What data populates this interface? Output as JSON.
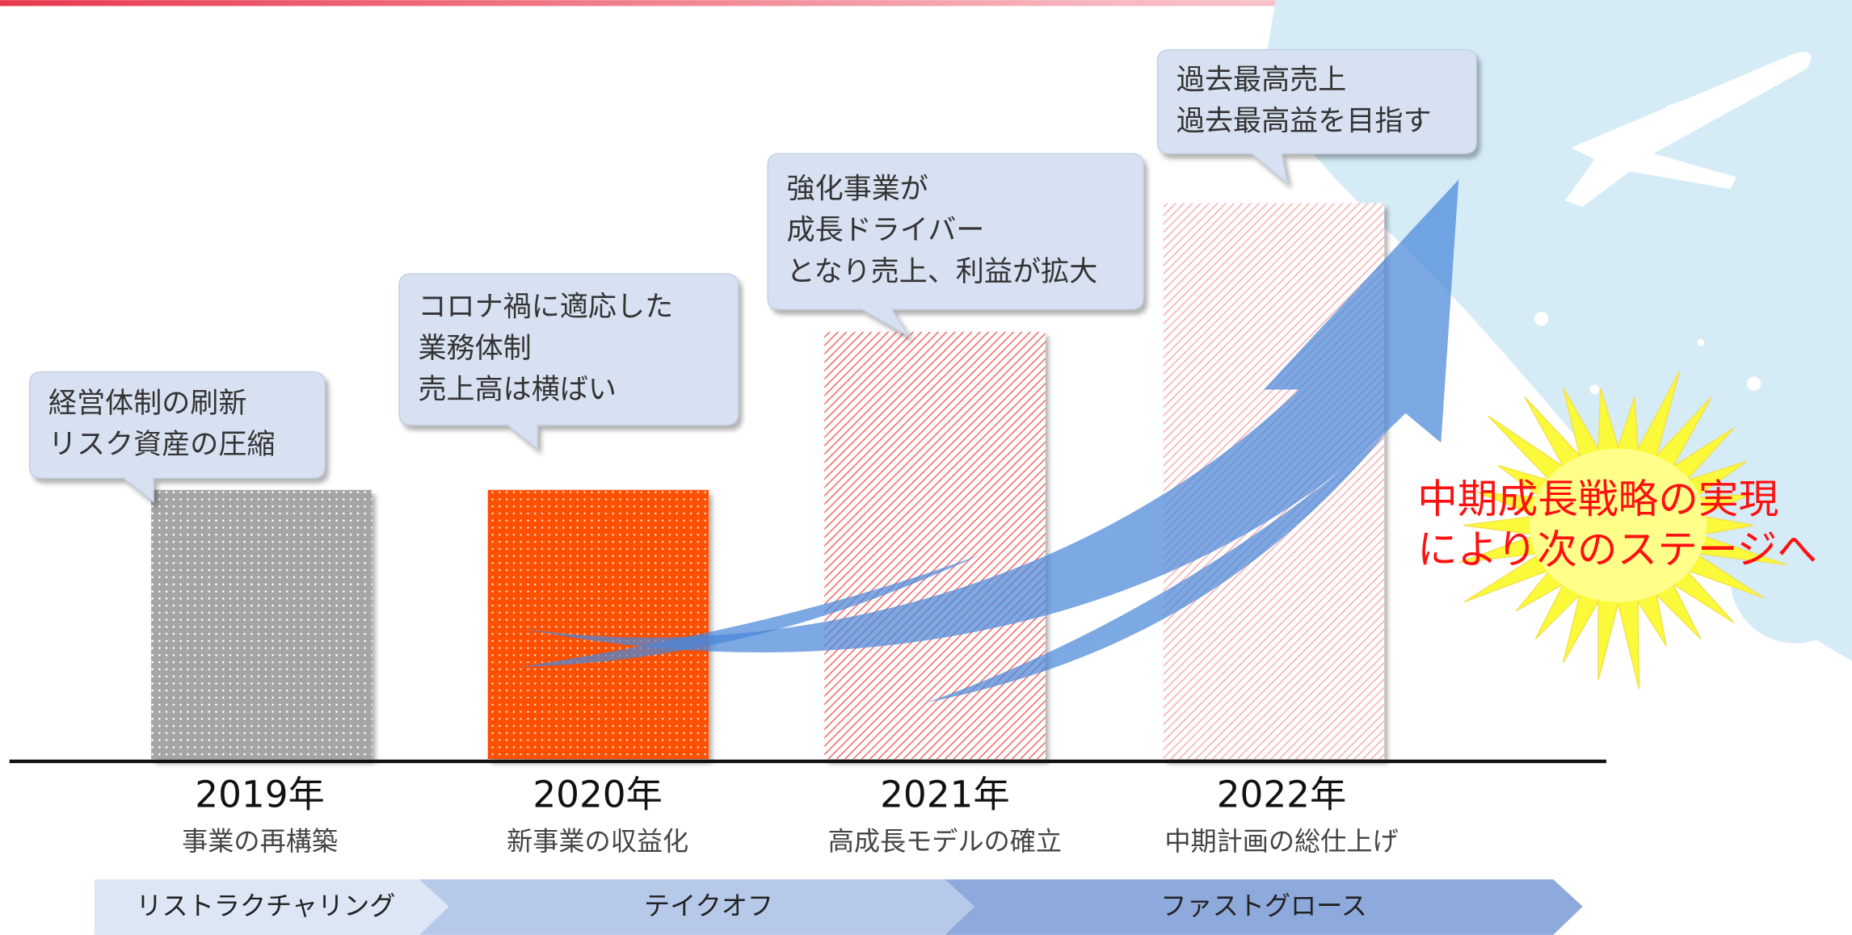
{
  "stages": [
    {
      "year": "2019年",
      "name": "事業の再構築",
      "bubble": [
        "経営体制の刷新",
        "リスク資産の圧縮"
      ]
    },
    {
      "year": "2020年",
      "name": "新事業の収益化",
      "bubble": [
        "コロナ禍に適応した",
        "業務体制",
        "売上高は横ばい"
      ]
    },
    {
      "year": "2021年",
      "name": "高成長モデルの確立",
      "bubble": [
        "強化事業が",
        "成長ドライバー",
        "となり売上、利益が拡大"
      ]
    },
    {
      "year": "2022年",
      "name": "中期計画の総仕上げ",
      "bubble": [
        "過去最高売上",
        "過去最高益を目指す"
      ]
    }
  ],
  "phases": [
    "リストラクチャリング",
    "テイクオフ",
    "ファストグロース"
  ],
  "callout": [
    "中期成長戦略の実現",
    "により次のステージへ"
  ]
}
